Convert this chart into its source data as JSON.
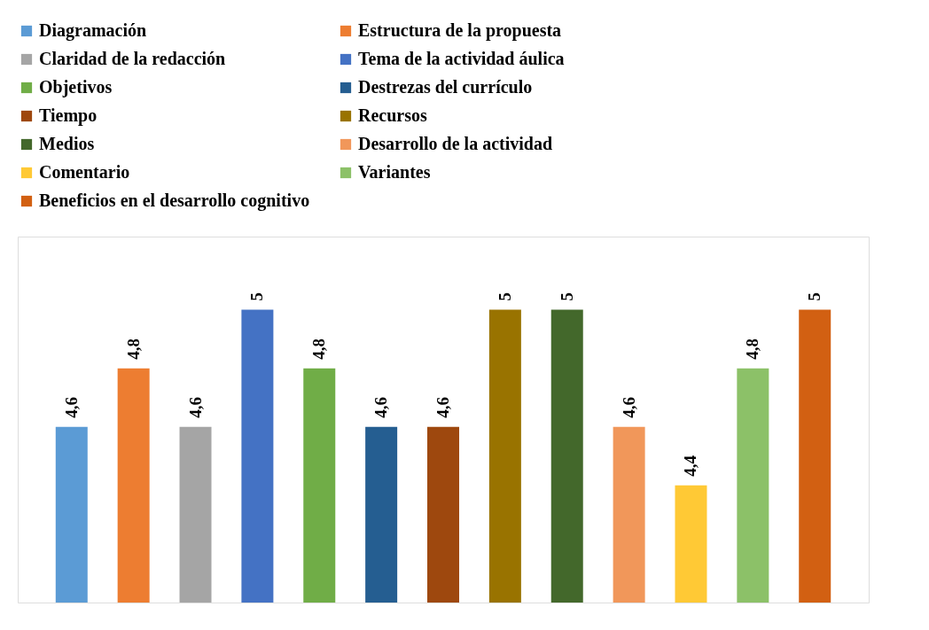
{
  "chart_data": {
    "type": "bar",
    "categories": [
      null,
      null,
      null,
      null,
      null,
      null,
      null,
      null,
      null,
      null,
      null,
      null,
      null
    ],
    "series": [
      {
        "name": "Diagramación",
        "color": "#5b9bd5",
        "values": [
          4.6,
          null,
          null,
          null,
          null,
          null,
          null,
          null,
          null,
          null,
          null,
          null,
          null
        ],
        "value_labels": [
          "4,6",
          null,
          null,
          null,
          null,
          null,
          null,
          null,
          null,
          null,
          null,
          null,
          null
        ]
      },
      {
        "name": "Estructura de la propuesta",
        "color": "#ed7d31",
        "values": [
          null,
          4.8,
          null,
          null,
          null,
          null,
          null,
          null,
          null,
          null,
          null,
          null,
          null
        ],
        "value_labels": [
          null,
          "4,8",
          null,
          null,
          null,
          null,
          null,
          null,
          null,
          null,
          null,
          null,
          null
        ]
      },
      {
        "name": "Claridad de la redacción",
        "color": "#a5a5a5",
        "values": [
          null,
          null,
          4.6,
          null,
          null,
          null,
          null,
          null,
          null,
          null,
          null,
          null,
          null
        ],
        "value_labels": [
          null,
          null,
          "4,6",
          null,
          null,
          null,
          null,
          null,
          null,
          null,
          null,
          null,
          null
        ]
      },
      {
        "name": "Tema de la actividad áulica",
        "color": "#4472c4",
        "values": [
          null,
          null,
          null,
          5,
          null,
          null,
          null,
          null,
          null,
          null,
          null,
          null,
          null
        ],
        "value_labels": [
          null,
          null,
          null,
          "5",
          null,
          null,
          null,
          null,
          null,
          null,
          null,
          null,
          null
        ]
      },
      {
        "name": "Objetivos",
        "color": "#70ad47",
        "values": [
          null,
          null,
          null,
          null,
          4.8,
          null,
          null,
          null,
          null,
          null,
          null,
          null,
          null
        ],
        "value_labels": [
          null,
          null,
          null,
          null,
          "4,8",
          null,
          null,
          null,
          null,
          null,
          null,
          null,
          null
        ]
      },
      {
        "name": "Destrezas del currículo",
        "color": "#255e91",
        "values": [
          null,
          null,
          null,
          null,
          null,
          4.6,
          null,
          null,
          null,
          null,
          null,
          null,
          null
        ],
        "value_labels": [
          null,
          null,
          null,
          null,
          null,
          "4,6",
          null,
          null,
          null,
          null,
          null,
          null,
          null
        ]
      },
      {
        "name": "Tiempo",
        "color": "#9e480e",
        "values": [
          null,
          null,
          null,
          null,
          null,
          null,
          4.6,
          null,
          null,
          null,
          null,
          null,
          null
        ],
        "value_labels": [
          null,
          null,
          null,
          null,
          null,
          null,
          "4,6",
          null,
          null,
          null,
          null,
          null,
          null
        ]
      },
      {
        "name": "Recursos",
        "color": "#997300",
        "values": [
          null,
          null,
          null,
          null,
          null,
          null,
          null,
          5,
          null,
          null,
          null,
          null,
          null
        ],
        "value_labels": [
          null,
          null,
          null,
          null,
          null,
          null,
          null,
          "5",
          null,
          null,
          null,
          null,
          null
        ]
      },
      {
        "name": "Medios",
        "color": "#43682b",
        "values": [
          null,
          null,
          null,
          null,
          null,
          null,
          null,
          null,
          5,
          null,
          null,
          null,
          null
        ],
        "value_labels": [
          null,
          null,
          null,
          null,
          null,
          null,
          null,
          null,
          "5",
          null,
          null,
          null,
          null
        ]
      },
      {
        "name": "Desarrollo de la actividad",
        "color": "#f1975a",
        "values": [
          null,
          null,
          null,
          null,
          null,
          null,
          null,
          null,
          null,
          4.6,
          null,
          null,
          null
        ],
        "value_labels": [
          null,
          null,
          null,
          null,
          null,
          null,
          null,
          null,
          null,
          "4,6",
          null,
          null,
          null
        ]
      },
      {
        "name": "Comentario",
        "color": "#ffc935",
        "values": [
          null,
          null,
          null,
          null,
          null,
          null,
          null,
          null,
          null,
          null,
          4.4,
          null,
          null
        ],
        "value_labels": [
          null,
          null,
          null,
          null,
          null,
          null,
          null,
          null,
          null,
          null,
          "4,4",
          null,
          null
        ]
      },
      {
        "name": "Variantes",
        "color": "#8cc168",
        "values": [
          null,
          null,
          null,
          null,
          null,
          null,
          null,
          null,
          null,
          null,
          null,
          4.8,
          null
        ],
        "value_labels": [
          null,
          null,
          null,
          null,
          null,
          null,
          null,
          null,
          null,
          null,
          null,
          "4,8",
          null
        ]
      },
      {
        "name": "Beneficios en el desarrollo cognitivo",
        "color": "#d26012",
        "values": [
          null,
          null,
          null,
          null,
          null,
          null,
          null,
          null,
          null,
          null,
          null,
          null,
          5
        ],
        "value_labels": [
          null,
          null,
          null,
          null,
          null,
          null,
          null,
          null,
          null,
          null,
          null,
          null,
          "5"
        ]
      }
    ],
    "ylim": [
      4,
      5.25
    ],
    "stacked": true,
    "tick_labels": false,
    "grid": false,
    "legend": "top"
  }
}
